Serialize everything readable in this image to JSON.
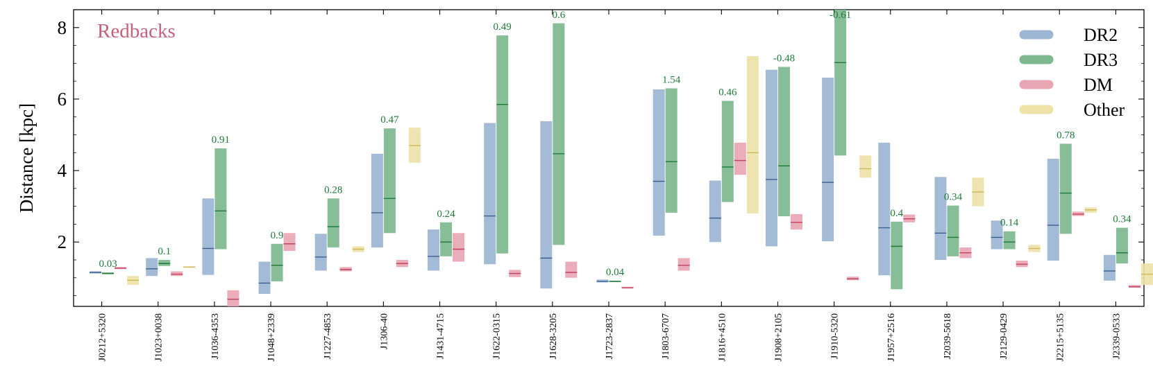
{
  "chart_data": {
    "type": "bar",
    "title": "",
    "annotation": "Redbacks",
    "xlabel": "",
    "ylabel": "Distance [kpc]",
    "ylim": [
      0.2,
      8.5
    ],
    "yticks": [
      2,
      4,
      6,
      8
    ],
    "legend_position": "top-right",
    "colors": {
      "DR2": "#9bb5d3",
      "DR3": "#7db88f",
      "DM": "#e8a6b3",
      "Other": "#ede2a8",
      "median_DR2": "#3a5f8f",
      "median_DR3": "#1f7a3a",
      "median_DM": "#c2415e",
      "median_Other": "#cdb75a",
      "parallax_label": "#1f7a3a",
      "annotation": "#c9607a"
    },
    "categories": [
      "J0212+5320",
      "J1023+0038",
      "J1036-4353",
      "J1048+2339",
      "J1227-4853",
      "J1306-40",
      "J1431-4715",
      "J1622-0315",
      "J1628-3205",
      "J1723-2837",
      "J1803-6707",
      "J1816+4510",
      "J1908+2105",
      "J1910-5320",
      "J1957+2516",
      "J2039-5618",
      "J2129-0429",
      "J2215+5135",
      "J2339-0533"
    ],
    "series": [
      {
        "name": "DR2",
        "low": [
          1.12,
          1.05,
          1.08,
          0.55,
          1.2,
          1.85,
          1.2,
          1.38,
          0.7,
          0.87,
          2.18,
          2.0,
          1.88,
          2.02,
          1.07,
          1.5,
          1.8,
          1.48,
          0.92
        ],
        "median": [
          1.15,
          1.25,
          1.82,
          0.85,
          1.58,
          2.82,
          1.6,
          2.73,
          1.55,
          0.9,
          3.7,
          2.67,
          3.75,
          3.67,
          2.4,
          2.25,
          2.13,
          2.47,
          1.19
        ],
        "high": [
          1.18,
          1.55,
          3.22,
          1.45,
          2.23,
          4.47,
          2.35,
          5.33,
          5.38,
          0.95,
          6.27,
          3.72,
          6.82,
          6.6,
          4.78,
          3.82,
          2.6,
          4.33,
          1.64
        ]
      },
      {
        "name": "DR3",
        "low": [
          1.1,
          1.33,
          1.8,
          0.9,
          1.85,
          2.25,
          1.6,
          1.68,
          1.92,
          0.88,
          2.82,
          3.12,
          2.72,
          4.42,
          0.68,
          1.6,
          1.8,
          2.23,
          1.4
        ],
        "median": [
          1.12,
          1.4,
          2.87,
          1.35,
          2.43,
          3.22,
          2.0,
          5.85,
          4.47,
          0.9,
          4.25,
          4.1,
          4.13,
          7.02,
          1.88,
          2.13,
          2.0,
          3.37,
          1.7
        ],
        "high": [
          1.15,
          1.5,
          4.62,
          1.95,
          3.22,
          5.18,
          2.55,
          7.78,
          8.12,
          0.92,
          6.3,
          5.95,
          6.9,
          8.5,
          2.57,
          3.02,
          2.3,
          4.75,
          2.4
        ]
      },
      {
        "name": "DM",
        "low": [
          1.24,
          1.05,
          0.2,
          1.75,
          1.18,
          1.3,
          1.45,
          1.02,
          1.0,
          0.7,
          1.2,
          3.88,
          2.35,
          0.93,
          2.55,
          1.55,
          1.3,
          2.73,
          0.72
        ],
        "median": [
          1.27,
          1.1,
          0.4,
          1.95,
          1.23,
          1.4,
          1.8,
          1.12,
          1.15,
          0.72,
          1.35,
          4.28,
          2.55,
          0.97,
          2.65,
          1.7,
          1.38,
          2.78,
          0.75
        ],
        "high": [
          1.3,
          1.18,
          0.65,
          2.25,
          1.3,
          1.5,
          2.25,
          1.22,
          1.45,
          0.75,
          1.55,
          4.78,
          2.78,
          1.03,
          2.77,
          1.85,
          1.48,
          2.85,
          0.8
        ]
      },
      {
        "name": "Other",
        "low": [
          0.8,
          1.28,
          null,
          null,
          1.72,
          4.22,
          null,
          null,
          null,
          null,
          null,
          2.8,
          null,
          3.8,
          null,
          3.0,
          1.72,
          2.82,
          0.8
        ],
        "median": [
          0.93,
          1.3,
          null,
          null,
          1.8,
          4.7,
          null,
          null,
          null,
          null,
          null,
          4.5,
          null,
          4.05,
          null,
          3.4,
          1.82,
          2.9,
          1.1
        ],
        "high": [
          1.05,
          1.32,
          null,
          null,
          1.88,
          5.2,
          null,
          null,
          null,
          null,
          null,
          7.2,
          null,
          4.42,
          null,
          3.8,
          1.92,
          2.97,
          1.4
        ]
      }
    ],
    "parallax_labels": [
      "0.03",
      "0.1",
      "0.91",
      "0.9",
      "0.28",
      "0.47",
      "0.24",
      "0.49",
      "0.6",
      "0.04",
      "1.54",
      "0.46",
      "-0.48",
      "-0.61",
      "0.4",
      "0.34",
      "0.14",
      "0.78",
      "0.34"
    ],
    "legend": [
      "DR2",
      "DR3",
      "DM",
      "Other"
    ]
  }
}
